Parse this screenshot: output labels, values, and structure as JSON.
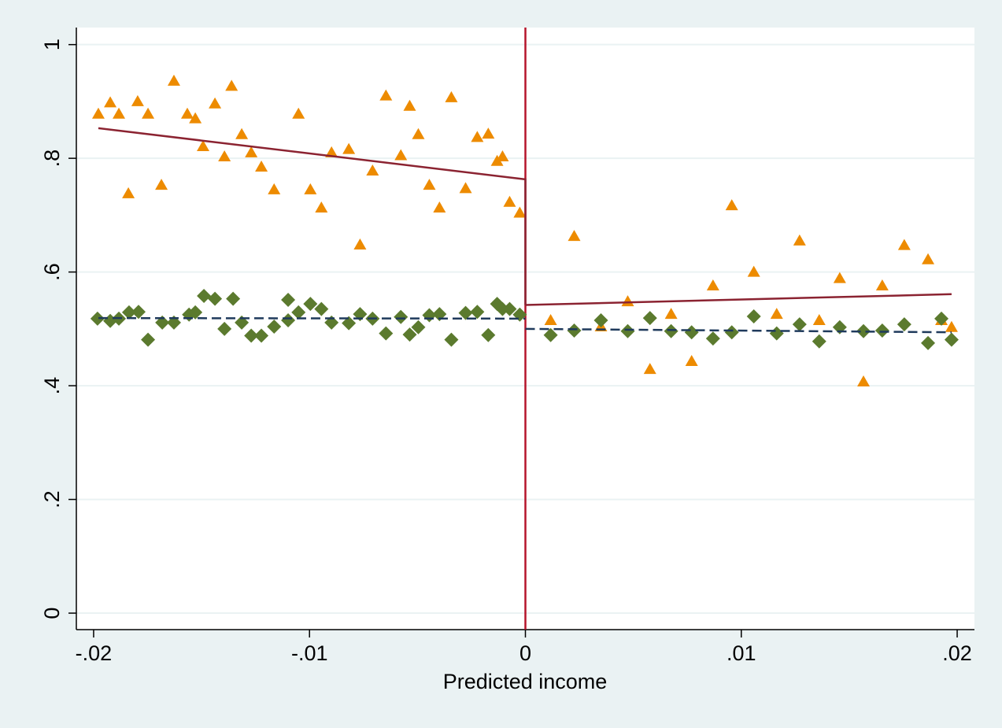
{
  "chart_data": {
    "type": "scatter",
    "xlabel": "Predicted income",
    "xlim": [
      -0.0208,
      0.0208
    ],
    "ylim": [
      -0.029,
      1.03
    ],
    "xticks": [
      {
        "value": -0.02,
        "label": "-.02"
      },
      {
        "value": -0.01,
        "label": "-.01"
      },
      0,
      {
        "value": 0.01,
        "label": ".01"
      },
      {
        "value": 0.02,
        "label": ".02"
      }
    ],
    "yticks": [
      0,
      {
        "value": 0.2,
        "label": ".2"
      },
      {
        "value": 0.4,
        "label": ".4"
      },
      {
        "value": 0.6,
        "label": ".6"
      },
      {
        "value": 0.8,
        "label": ".8"
      },
      1
    ],
    "grid": true,
    "vline": {
      "x": 0,
      "color": "#b5152b"
    },
    "series": [
      {
        "type": "scatter",
        "marker": "triangle",
        "color": "#ed8b00",
        "x": [
          -0.01978,
          -0.01923,
          -0.01883,
          -0.01839,
          -0.01796,
          -0.01748,
          -0.01686,
          -0.01628,
          -0.01566,
          -0.01529,
          -0.01493,
          -0.01438,
          -0.01394,
          -0.01361,
          -0.01314,
          -0.0127,
          -0.01223,
          -0.01164,
          -0.01051,
          -0.00996,
          -0.00945,
          -0.00898,
          -0.00818,
          -0.00766,
          -0.00708,
          -0.00646,
          -0.00577,
          -0.00536,
          -0.00496,
          -0.00445,
          -0.00398,
          -0.00343,
          -0.00277,
          -0.00223,
          -0.00172,
          -0.00131,
          -0.00106,
          -0.00073,
          -0.00026,
          0.00117,
          0.00226,
          0.0035,
          0.00474,
          0.00577,
          0.00675,
          0.0077,
          0.00869,
          0.00956,
          0.01058,
          0.01164,
          0.0127,
          0.01361,
          0.01456,
          0.01566,
          0.01653,
          0.01755,
          0.01865,
          0.01927,
          0.01974
        ],
        "values": [
          0.878,
          0.898,
          0.878,
          0.738,
          0.9,
          0.878,
          0.753,
          0.936,
          0.878,
          0.87,
          0.821,
          0.896,
          0.803,
          0.927,
          0.842,
          0.81,
          0.785,
          0.745,
          0.878,
          0.745,
          0.713,
          0.81,
          0.816,
          0.648,
          0.778,
          0.91,
          0.805,
          0.892,
          0.842,
          0.753,
          0.713,
          0.907,
          0.747,
          0.837,
          0.843,
          0.795,
          0.803,
          0.723,
          0.704,
          0.515,
          0.663,
          0.504,
          0.548,
          0.429,
          0.526,
          0.443,
          0.576,
          0.717,
          0.6,
          0.526,
          0.655,
          0.515,
          0.589,
          0.407,
          0.576,
          0.647,
          0.622,
          0.515,
          0.503
        ]
      },
      {
        "type": "scatter",
        "marker": "diamond",
        "color": "#5b7a2e",
        "x": [
          -0.01982,
          -0.01923,
          -0.01883,
          -0.01836,
          -0.01792,
          -0.01748,
          -0.01682,
          -0.01628,
          -0.01558,
          -0.01529,
          -0.01489,
          -0.01438,
          -0.01394,
          -0.01354,
          -0.01314,
          -0.0127,
          -0.01223,
          -0.01164,
          -0.01099,
          -0.01099,
          -0.01051,
          -0.00996,
          -0.00945,
          -0.00898,
          -0.00818,
          -0.00766,
          -0.00708,
          -0.00646,
          -0.00577,
          -0.00536,
          -0.00496,
          -0.00445,
          -0.00398,
          -0.00343,
          -0.00277,
          -0.00223,
          -0.00172,
          -0.00131,
          -0.00106,
          -0.00073,
          -0.00026,
          0.00117,
          0.00226,
          0.0035,
          0.00474,
          0.00577,
          0.00675,
          0.0077,
          0.00869,
          0.00956,
          0.01058,
          0.01164,
          0.0127,
          0.01361,
          0.01456,
          0.01566,
          0.01653,
          0.01755,
          0.01865,
          0.01927,
          0.01974
        ],
        "values": [
          0.518,
          0.514,
          0.518,
          0.529,
          0.53,
          0.481,
          0.511,
          0.511,
          0.525,
          0.529,
          0.558,
          0.553,
          0.5,
          0.553,
          0.511,
          0.488,
          0.488,
          0.504,
          0.551,
          0.515,
          0.529,
          0.544,
          0.535,
          0.511,
          0.51,
          0.526,
          0.518,
          0.492,
          0.521,
          0.49,
          0.503,
          0.524,
          0.526,
          0.481,
          0.528,
          0.53,
          0.489,
          0.544,
          0.535,
          0.535,
          0.525,
          0.489,
          0.497,
          0.515,
          0.496,
          0.519,
          0.496,
          0.494,
          0.483,
          0.494,
          0.522,
          0.492,
          0.508,
          0.478,
          0.503,
          0.496,
          0.497,
          0.508,
          0.475,
          0.518,
          0.481
        ]
      },
      {
        "type": "line",
        "dash": false,
        "color": "#8b2331",
        "x": [
          -0.01978,
          0,
          0
        ],
        "values": [
          0.853,
          0.763,
          0.542
        ]
      },
      {
        "type": "line",
        "dash": false,
        "color": "#8b2331",
        "x": [
          0,
          0.01974
        ],
        "values": [
          0.542,
          0.561
        ]
      },
      {
        "type": "line",
        "dash": true,
        "color": "#1f3a5c",
        "x": [
          -0.01978,
          0
        ],
        "values": [
          0.519,
          0.518
        ]
      },
      {
        "type": "line",
        "dash": true,
        "color": "#1f3a5c",
        "x": [
          0,
          0.01974
        ],
        "values": [
          0.5,
          0.494
        ]
      }
    ]
  }
}
